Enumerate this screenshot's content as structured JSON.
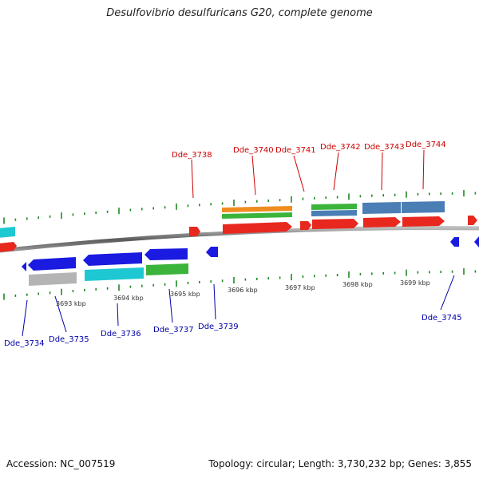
{
  "title": "Desulfovibrio desulfuricans G20, complete genome",
  "footer": {
    "accession": "Accession: NC_007519",
    "summary": "Topology: circular; Length: 3,730,232 bp; Genes: 3,855"
  },
  "ticks": [
    "3693 kbp",
    "3694 kbp",
    "3695 kbp",
    "3696 kbp",
    "3697 kbp",
    "3698 kbp",
    "3699 kbp"
  ],
  "genes_top": [
    "Dde_3738",
    "Dde_3740",
    "Dde_3741",
    "Dde_3742",
    "Dde_3743",
    "Dde_3744"
  ],
  "genes_bottom": [
    "Dde_3734",
    "Dde_3735",
    "Dde_3736",
    "Dde_3737",
    "Dde_3739",
    "Dde_3745"
  ],
  "colors": {
    "cds": "#e8281e",
    "gene": "#1a1ae0",
    "cyan": "#1ec8d2",
    "green": "#3cb43c",
    "orange": "#f08c1e",
    "steel": "#4a7eb5",
    "grey": "#b4b4b4",
    "backbone": "#7a7a7a",
    "tick": "#228822"
  }
}
